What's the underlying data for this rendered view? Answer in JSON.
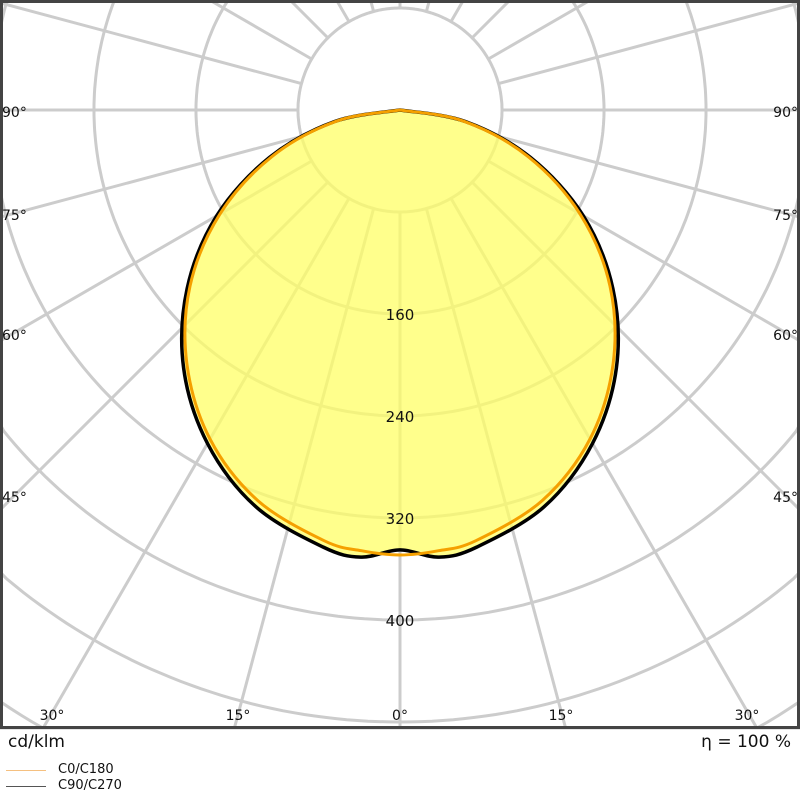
{
  "chart_data": {
    "type": "polar",
    "title": "",
    "unit_label": "cd/klm",
    "efficiency_label": "η = 100 %",
    "radial_ticks": [
      160,
      240,
      320,
      400
    ],
    "radial_grid": [
      80,
      160,
      240,
      320,
      400,
      480,
      560,
      640
    ],
    "angle_grid_step_deg": 15,
    "angle_labels": {
      "bottom": [
        "30°",
        "15°",
        "0°",
        "15°",
        "30°"
      ],
      "sides": [
        "90°",
        "75°",
        "60°",
        "45°"
      ]
    },
    "gamma": [
      0,
      5,
      10,
      20,
      30,
      40,
      50,
      60,
      70,
      80,
      90
    ],
    "series": [
      {
        "name": "C0/C180",
        "color": "#f5a000",
        "values": [
          349,
          347,
          343,
          326,
          298,
          260,
          215,
          163,
          107,
          51,
          0
        ]
      },
      {
        "name": "C90/C270",
        "color": "#000000",
        "values": [
          345,
          352,
          348,
          331,
          302,
          264,
          218,
          166,
          109,
          52,
          0
        ]
      }
    ],
    "legend_colors": {
      "C0/C180": "#f5c080",
      "C90/C270": "#555555"
    },
    "fill_color": "#ffff66",
    "grid": true,
    "legend_placement": "bottom-left"
  }
}
